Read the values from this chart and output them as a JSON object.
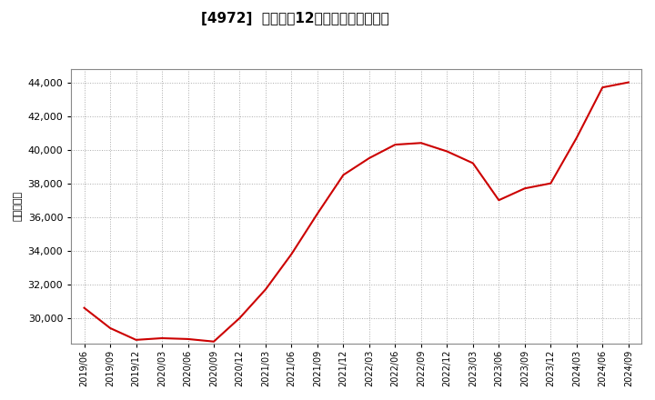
{
  "title": "[4972]  売上高の12か月移動合計の推移",
  "ylabel": "（百万円）",
  "line_color": "#cc0000",
  "background_color": "#ffffff",
  "grid_color": "#aaaaaa",
  "ylim": [
    28500,
    44800
  ],
  "yticks": [
    30000,
    32000,
    34000,
    36000,
    38000,
    40000,
    42000,
    44000
  ],
  "x_labels": [
    "2019/06",
    "2019/09",
    "2019/12",
    "2020/03",
    "2020/06",
    "2020/09",
    "2020/12",
    "2021/03",
    "2021/06",
    "2021/09",
    "2021/12",
    "2022/03",
    "2022/06",
    "2022/09",
    "2022/12",
    "2023/03",
    "2023/06",
    "2023/09",
    "2023/12",
    "2024/03",
    "2024/06",
    "2024/09"
  ],
  "values": [
    30600,
    29400,
    28700,
    28800,
    28750,
    28600,
    30000,
    31700,
    33800,
    36200,
    38500,
    39500,
    40300,
    40400,
    39900,
    39200,
    37000,
    37700,
    38000,
    40700,
    43700,
    44000
  ],
  "title_fontsize": 11,
  "tick_fontsize": 8,
  "ylabel_fontsize": 8
}
